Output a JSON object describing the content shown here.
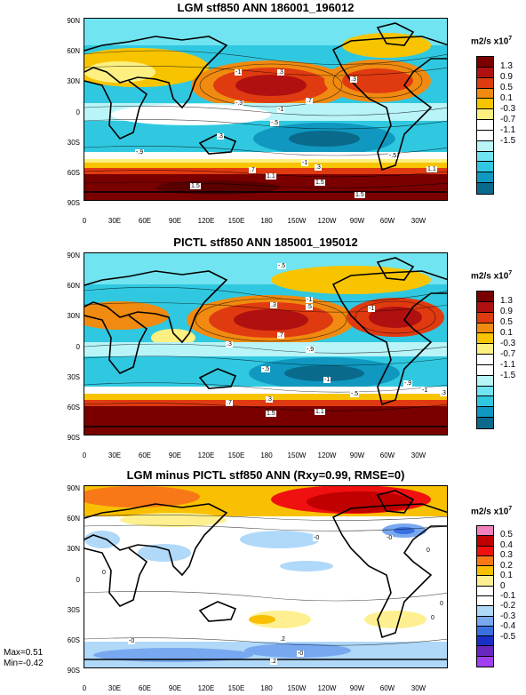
{
  "panels": [
    {
      "title": "LGM stf850 ANN 186001_196012",
      "colorbar_unit": "m2/s x10",
      "colorbar_exp": "7",
      "colorbar_labels": [
        "1.3",
        "0.9",
        "0.5",
        "0.1",
        "-0.3",
        "-0.7",
        "-1.1",
        "-1.5"
      ],
      "colorbar_colors": [
        "#7a0000",
        "#b01010",
        "#e03a10",
        "#f08a10",
        "#f8c400",
        "#fdf080",
        "#ffffff",
        "#ffffff",
        "#b8f4f8",
        "#70e4f0",
        "#30c8e0",
        "#1098c0",
        "#0a6a8c"
      ],
      "contour_labels": [
        "-1",
        ".3",
        ".3",
        "-.3",
        ".7",
        "-1",
        "-.5",
        ".3",
        "-.9",
        ".7",
        "1.1",
        "-1",
        ".3",
        "-.5",
        "1.1",
        "1.5",
        "1.5",
        "1.5"
      ]
    },
    {
      "title": "PICTL stf850 ANN 185001_195012",
      "colorbar_unit": "m2/s x10",
      "colorbar_exp": "7",
      "colorbar_labels": [
        "1.3",
        "0.9",
        "0.5",
        "0.1",
        "-0.3",
        "-0.7",
        "-1.1",
        "-1.5"
      ],
      "colorbar_colors": [
        "#7a0000",
        "#b01010",
        "#e03a10",
        "#f08a10",
        "#f8c400",
        "#fdf080",
        "#ffffff",
        "#ffffff",
        "#b8f4f8",
        "#70e4f0",
        "#30c8e0",
        "#1098c0",
        "#0a6a8c"
      ],
      "contour_labels": [
        "-.5",
        ".3",
        "-1",
        ".5",
        "-1",
        ".3",
        ".7",
        "-.9",
        "-.5",
        "-1",
        "1.5",
        ".3",
        ".7",
        "-.5",
        "-.9",
        "1.1",
        "-1",
        ".3"
      ]
    },
    {
      "title": "LGM minus PICTL stf850 ANN (Rxy=0.99, RMSE=0)",
      "colorbar_unit": "m2/s x10",
      "colorbar_exp": "7",
      "colorbar_labels": [
        "0.5",
        "0.4",
        "0.3",
        "0.2",
        "0.1",
        "0",
        "-0.1",
        "-0.2",
        "-0.3",
        "-0.4",
        "-0.5"
      ],
      "colorbar_colors": [
        "#f080c0",
        "#c00000",
        "#f01010",
        "#f87818",
        "#f8c000",
        "#fef090",
        "#ffffff",
        "#ffffff",
        "#b0d8f8",
        "#78a8f0",
        "#3870e0",
        "#1830c8",
        "#6828c0",
        "#a040f0"
      ],
      "contour_labels": [
        "-0",
        "-0",
        "0",
        "0",
        "0",
        "0",
        ".2",
        "-0",
        "-0",
        ".2"
      ],
      "stats_max": "Max=0.51",
      "stats_min": "Min=-0.42"
    }
  ],
  "lat_labels": [
    "90N",
    "60N",
    "30N",
    "0",
    "30S",
    "60S",
    "90S"
  ],
  "lon_labels": [
    "0",
    "30E",
    "60E",
    "90E",
    "120E",
    "150E",
    "180",
    "150W",
    "120W",
    "90W",
    "60W",
    "30W"
  ]
}
